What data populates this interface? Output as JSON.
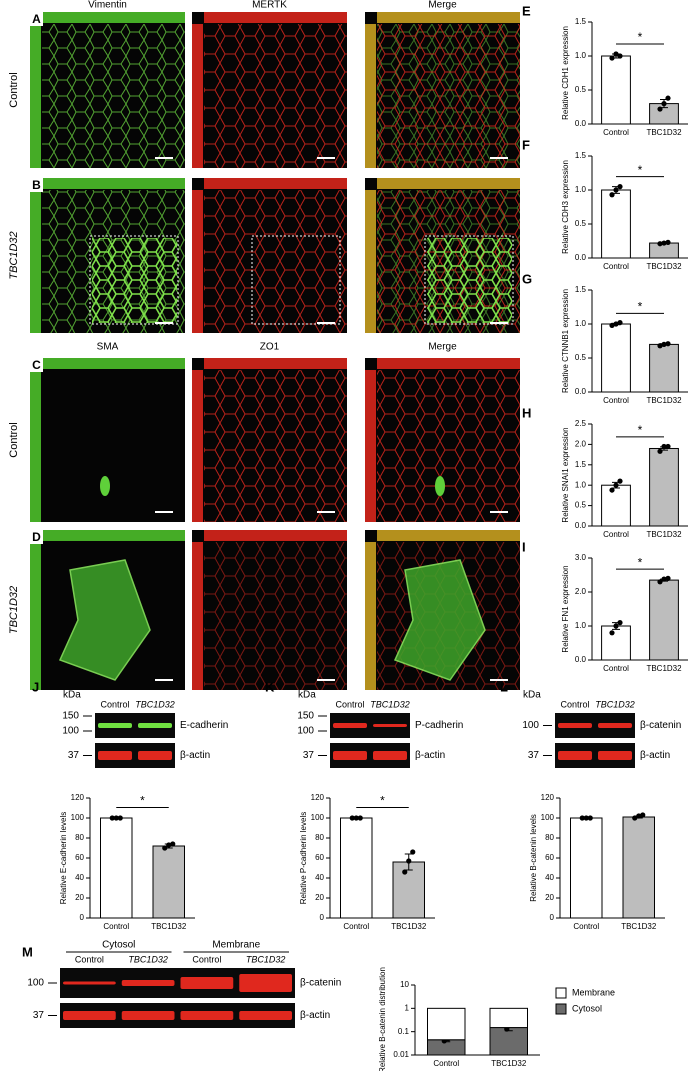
{
  "images": {
    "column_labels_top": [
      "Vimentin",
      "MERTK",
      "Merge"
    ],
    "column_labels_bottom": [
      "SMA",
      "ZO1",
      "Merge"
    ],
    "rows": [
      {
        "panel": "A",
        "label": "Control"
      },
      {
        "panel": "B",
        "label": "TBC1D32"
      },
      {
        "panel": "C",
        "label": "Control"
      },
      {
        "panel": "D",
        "label": "TBC1D32"
      }
    ]
  },
  "blots": [
    {
      "panel": "J",
      "unit": "kDa",
      "lanes": [
        "Control",
        "TBC1D32"
      ],
      "markers": [
        "150",
        "100",
        "37"
      ],
      "bands": [
        "E-cadherin",
        "β-actin"
      ]
    },
    {
      "panel": "K",
      "unit": "kDa",
      "lanes": [
        "Control",
        "TBC1D32"
      ],
      "markers": [
        "150",
        "100",
        "37"
      ],
      "bands": [
        "P-cadherin",
        "β-actin"
      ]
    },
    {
      "panel": "L",
      "unit": "kDa",
      "lanes": [
        "Control",
        "TBC1D32"
      ],
      "markers": [
        "100",
        "37"
      ],
      "bands": [
        "β-catenin",
        "β-actin"
      ]
    },
    {
      "panel": "M",
      "groups": [
        "Cytosol",
        "Membrane"
      ],
      "lanes": [
        "Control",
        "TBC1D32",
        "Control",
        "TBC1D32"
      ],
      "markers": [
        "100",
        "37"
      ],
      "bands": [
        "β-catenin",
        "β-actin"
      ]
    }
  ],
  "chart_data": [
    {
      "type": "bar",
      "panel": "E",
      "ylabel": "Relative CDH1 expression",
      "categories": [
        "Control",
        "TBC1D32"
      ],
      "colors": [
        "#ffffff",
        "#bdbdbd"
      ],
      "values": [
        1.0,
        0.3
      ],
      "errors": [
        0.03,
        0.06
      ],
      "points": [
        [
          0.97,
          1.03,
          1.0
        ],
        [
          0.22,
          0.3,
          0.38
        ]
      ],
      "ylim": [
        0,
        1.5
      ],
      "yticks": [
        {
          "value": 0,
          "label": "0.0"
        },
        0.5,
        {
          "value": 1,
          "label": "1.0"
        },
        1.5
      ],
      "annotation": "*"
    },
    {
      "type": "bar",
      "panel": "F",
      "ylabel": "Relative CDH3 expression",
      "categories": [
        "Control",
        "TBC1D32"
      ],
      "colors": [
        "#ffffff",
        "#bdbdbd"
      ],
      "values": [
        1.0,
        0.22
      ],
      "errors": [
        0.05,
        0.01
      ],
      "points": [
        [
          0.93,
          1.0,
          1.05
        ],
        [
          0.21,
          0.22,
          0.23
        ]
      ],
      "ylim": [
        0,
        1.5
      ],
      "yticks": [
        {
          "value": 0,
          "label": "0.0"
        },
        0.5,
        {
          "value": 1,
          "label": "1.0"
        },
        1.5
      ],
      "annotation": "*"
    },
    {
      "type": "bar",
      "panel": "G",
      "ylabel": "Relative CTNNB1 expression",
      "categories": [
        "Control",
        "TBC1D32"
      ],
      "colors": [
        "#ffffff",
        "#bdbdbd"
      ],
      "values": [
        1.0,
        0.7
      ],
      "errors": [
        0.01,
        0.01
      ],
      "points": [
        [
          0.98,
          1.0,
          1.02
        ],
        [
          0.68,
          0.7,
          0.71
        ]
      ],
      "ylim": [
        0,
        1.5
      ],
      "yticks": [
        {
          "value": 0,
          "label": "0.0"
        },
        0.5,
        {
          "value": 1,
          "label": "1.0"
        },
        1.5
      ],
      "annotation": "*"
    },
    {
      "type": "bar",
      "panel": "H",
      "ylabel": "Relative SNAI1 expression",
      "categories": [
        "Control",
        "TBC1D32"
      ],
      "colors": [
        "#ffffff",
        "#bdbdbd"
      ],
      "values": [
        1.0,
        1.9
      ],
      "errors": [
        0.07,
        0.04
      ],
      "points": [
        [
          0.88,
          1.0,
          1.1
        ],
        [
          1.83,
          1.95,
          1.95
        ]
      ],
      "ylim": [
        0,
        2.5
      ],
      "yticks": [
        {
          "value": 0,
          "label": "0.0"
        },
        0.5,
        {
          "value": 1,
          "label": "1.0"
        },
        1.5,
        {
          "value": 2,
          "label": "2.0"
        },
        2.5
      ],
      "annotation": "*"
    },
    {
      "type": "bar",
      "panel": "I",
      "ylabel": "Relative FN1 expression",
      "categories": [
        "Control",
        "TBC1D32"
      ],
      "colors": [
        "#ffffff",
        "#bdbdbd"
      ],
      "values": [
        1.0,
        2.35
      ],
      "errors": [
        0.1,
        0.03
      ],
      "points": [
        [
          0.8,
          1.0,
          1.1
        ],
        [
          2.3,
          2.38,
          2.4
        ]
      ],
      "ylim": [
        0,
        3
      ],
      "yticks": [
        {
          "value": 0,
          "label": "0.0"
        },
        {
          "value": 1,
          "label": "1.0"
        },
        {
          "value": 2,
          "label": "2.0"
        },
        {
          "value": 3,
          "label": "3.0"
        }
      ],
      "annotation": "*"
    },
    {
      "type": "bar",
      "ylabel": "Relative E-cadherin levels",
      "categories": [
        "Control",
        "TBC1D32"
      ],
      "colors": [
        "#ffffff",
        "#bdbdbd"
      ],
      "values": [
        100,
        72
      ],
      "errors": [
        0.5,
        2
      ],
      "points": [
        [
          100,
          100,
          100
        ],
        [
          70,
          73,
          74
        ]
      ],
      "ylim": [
        0,
        120
      ],
      "yticks": [
        0,
        20,
        40,
        60,
        80,
        100,
        120
      ],
      "annotation": "*"
    },
    {
      "type": "bar",
      "ylabel": "Relative P-cadherin levels",
      "categories": [
        "Control",
        "TBC1D32"
      ],
      "colors": [
        "#ffffff",
        "#bdbdbd"
      ],
      "values": [
        100,
        56
      ],
      "errors": [
        0.5,
        8
      ],
      "points": [
        [
          100,
          100,
          100
        ],
        [
          46,
          57,
          66
        ]
      ],
      "ylim": [
        0,
        120
      ],
      "yticks": [
        0,
        20,
        40,
        60,
        80,
        100,
        120
      ],
      "annotation": "*"
    },
    {
      "type": "bar",
      "ylabel": "Relative B-catenin levels",
      "categories": [
        "Control",
        "TBC1D32"
      ],
      "colors": [
        "#ffffff",
        "#bdbdbd"
      ],
      "values": [
        100,
        101
      ],
      "errors": [
        0.5,
        1
      ],
      "points": [
        [
          100,
          100,
          100
        ],
        [
          100,
          102,
          103
        ]
      ],
      "ylim": [
        0,
        120
      ],
      "yticks": [
        0,
        20,
        40,
        60,
        80,
        100,
        120
      ]
    },
    {
      "type": "stacked_bar",
      "ylabel": "Relative B-catenin distribution",
      "categories": [
        "Control",
        "TBC1D32"
      ],
      "log_scale": true,
      "series": [
        {
          "name": "Cytosol",
          "color": "#6b6b6b",
          "values": [
            0.045,
            0.15
          ],
          "errors": [
            0.008,
            0.04
          ],
          "points": [
            [
              0.04,
              0.05
            ],
            [
              0.13,
              0.19
            ]
          ]
        },
        {
          "name": "Membrane",
          "color": "#ffffff",
          "values": [
            0.955,
            0.85
          ]
        }
      ],
      "ylim": [
        0.01,
        10
      ],
      "yticks": [
        0.01,
        0.1,
        1,
        10
      ]
    }
  ]
}
